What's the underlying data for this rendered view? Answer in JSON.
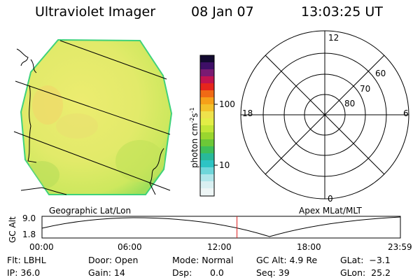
{
  "header": {
    "title": "Ultraviolet Imager",
    "date": "08 Jan 07",
    "time": "13:03:25 UT"
  },
  "colorbar": {
    "label": "photon cm",
    "label_sup1": "-2",
    "label_mid": "s",
    "label_sup2": "-1",
    "ticks": [
      "100",
      "10"
    ]
  },
  "polar_plot": {
    "mlt_labels": [
      "12",
      "18",
      "6",
      "0"
    ],
    "mlat_labels": [
      "60",
      "70",
      "80"
    ]
  },
  "left_panel_label": "Geographic Lat/Lon",
  "right_panel_label": "Apex MLat/MLT",
  "orbit_plot": {
    "ylabel": "GC Alt",
    "yticks": [
      "9.0",
      "1.8"
    ],
    "xticks": [
      "00:00",
      "06:00",
      "12:00",
      "18:00",
      "23:59"
    ],
    "current_time_fraction": 0.544
  },
  "info": {
    "flt": "Flt: LBHL",
    "ip": "IP: 36.0",
    "door": "Door: Open",
    "gain": "Gain: 14",
    "mode": "Mode: Normal",
    "dsp_label": "Dsp:",
    "dsp_value": "0.0",
    "gc_alt": "GC Alt: 4.9 Re",
    "seq": "Seq: 39",
    "glat": "GLat:  −3.1",
    "glon": "GLon:  25.2"
  }
}
